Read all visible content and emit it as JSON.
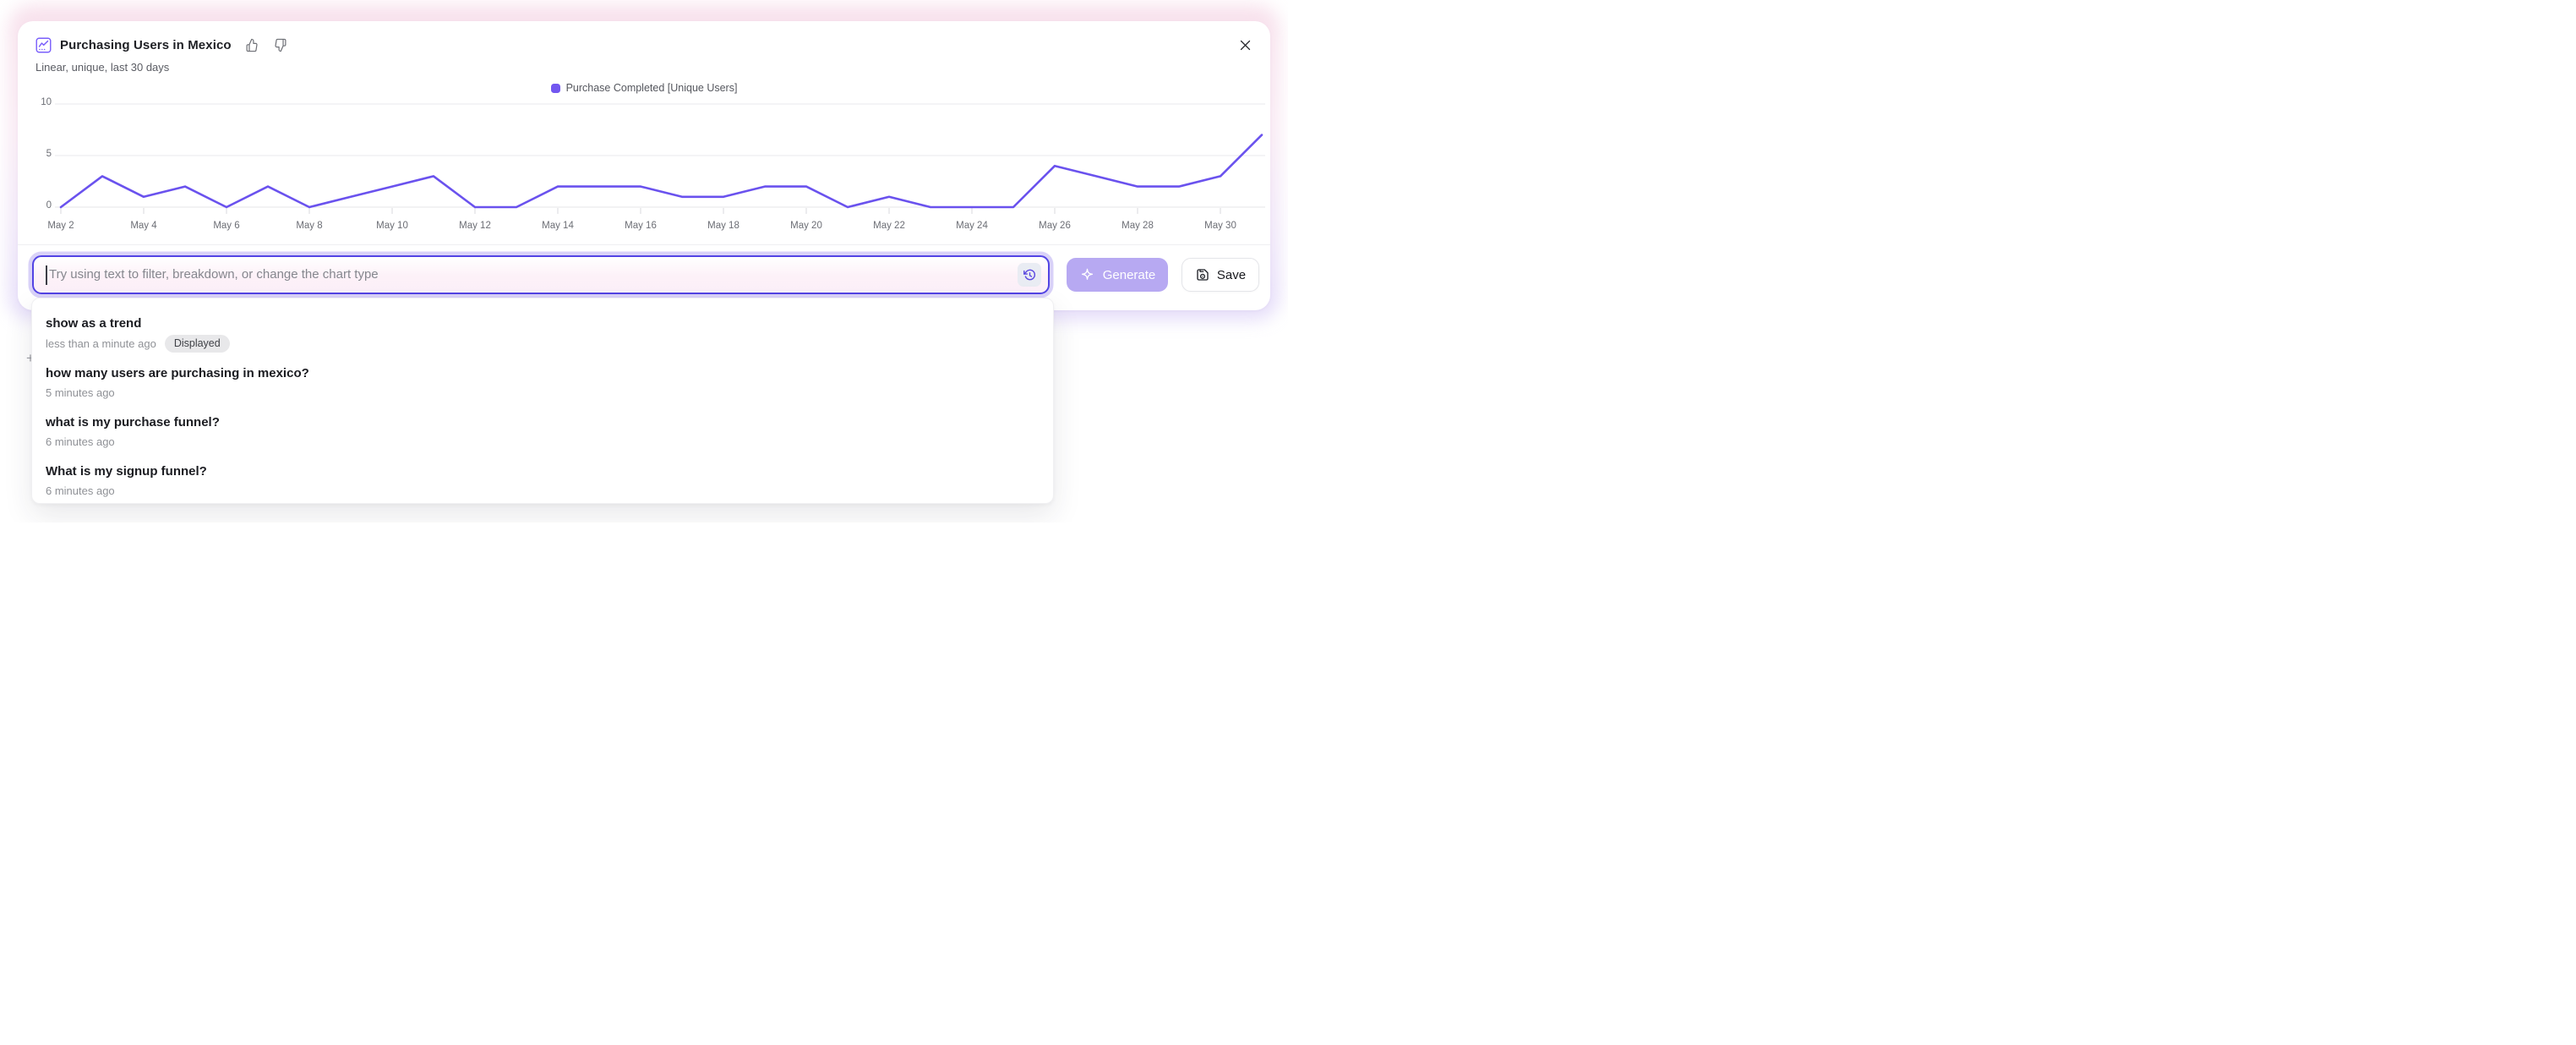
{
  "header": {
    "title": "Purchasing Users in Mexico",
    "subtitle": "Linear, unique, last 30 days"
  },
  "legend": {
    "label": "Purchase Completed [Unique Users]",
    "swatch_color": "#7257f0"
  },
  "chart_data": {
    "type": "line",
    "title": "Purchasing Users in Mexico",
    "x": [
      "May 2",
      "May 3",
      "May 4",
      "May 5",
      "May 6",
      "May 7",
      "May 8",
      "May 9",
      "May 10",
      "May 11",
      "May 12",
      "May 13",
      "May 14",
      "May 15",
      "May 16",
      "May 17",
      "May 18",
      "May 19",
      "May 20",
      "May 21",
      "May 22",
      "May 23",
      "May 24",
      "May 25",
      "May 26",
      "May 27",
      "May 28",
      "May 29",
      "May 30",
      "May 31"
    ],
    "series": [
      {
        "name": "Purchase Completed [Unique Users]",
        "color": "#6a52ee",
        "values": [
          0,
          3,
          1,
          2,
          0,
          2,
          0,
          1,
          2,
          3,
          0,
          0,
          2,
          2,
          2,
          1,
          1,
          2,
          2,
          0,
          1,
          0,
          0,
          0,
          4,
          3,
          2,
          2,
          3,
          7
        ]
      }
    ],
    "x_tick_labels": [
      "May 2",
      "May 4",
      "May 6",
      "May 8",
      "May 10",
      "May 12",
      "May 14",
      "May 16",
      "May 18",
      "May 20",
      "May 22",
      "May 24",
      "May 26",
      "May 28",
      "May 30"
    ],
    "label_every": 2,
    "y_ticks": [
      0,
      5,
      10
    ],
    "ylim": [
      0,
      10
    ],
    "grid": "horizontal-only",
    "legend_position": "top-center"
  },
  "input": {
    "placeholder": "Try using text to filter, breakdown, or change the chart type"
  },
  "actions": {
    "generate_label": "Generate",
    "save_label": "Save"
  },
  "history": {
    "items": [
      {
        "title": "show as a trend",
        "time": "less than a minute ago",
        "badge": "Displayed"
      },
      {
        "title": "how many users are purchasing in mexico?",
        "time": "5 minutes ago",
        "badge": ""
      },
      {
        "title": "what is my purchase funnel?",
        "time": "6 minutes ago",
        "badge": ""
      },
      {
        "title": "What is my signup funnel?",
        "time": "6 minutes ago",
        "badge": ""
      }
    ]
  },
  "misc": {
    "plus_glyph": "+"
  },
  "icons": {
    "header_icon": "line-chart-badge-icon",
    "feedback": [
      "thumbs-up-icon",
      "thumbs-down-icon"
    ],
    "close": "close-icon",
    "input_right": "history-clock-icon",
    "generate": "sparkle-icon",
    "save": "save-disk-icon"
  },
  "colors": {
    "accent_purple": "#5243e4",
    "line_purple": "#6a52ee",
    "generate_bg": "#b7a9f2",
    "input_ring": "#d9d2f8",
    "glow_pink": "#f6d9e7",
    "glow_lavender": "#ddd3f8",
    "badge_bg": "#e8e8ea"
  }
}
